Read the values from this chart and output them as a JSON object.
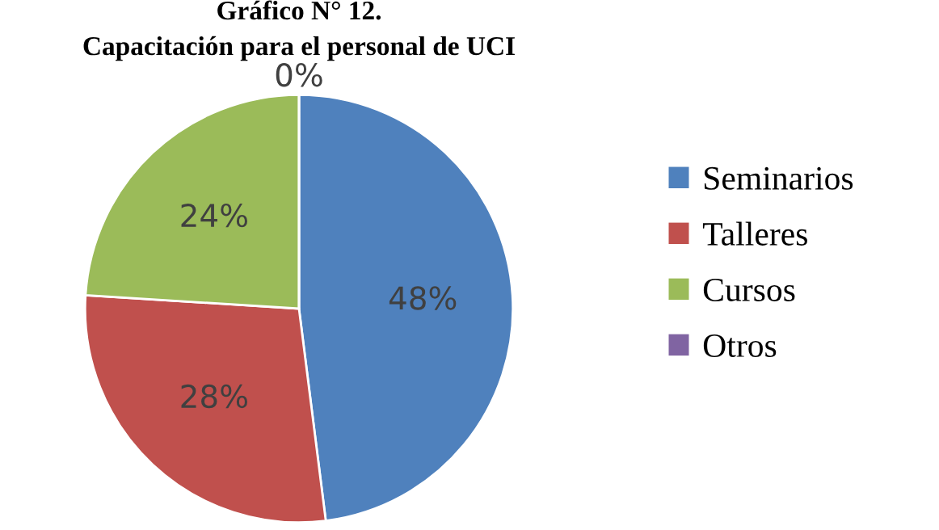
{
  "chart_data": {
    "type": "pie",
    "title": "Gráfico N° 12.",
    "subtitle": "Capacitación para el personal de UCI",
    "categories": [
      "Seminarios",
      "Talleres",
      "Cursos",
      "Otros"
    ],
    "values": [
      48,
      28,
      24,
      0
    ],
    "colors": [
      "#4f81bd",
      "#c0504d",
      "#9bbb59",
      "#8064a2"
    ],
    "value_labels": [
      "48%",
      "28%",
      "24%",
      "0%"
    ],
    "legend": "right"
  }
}
